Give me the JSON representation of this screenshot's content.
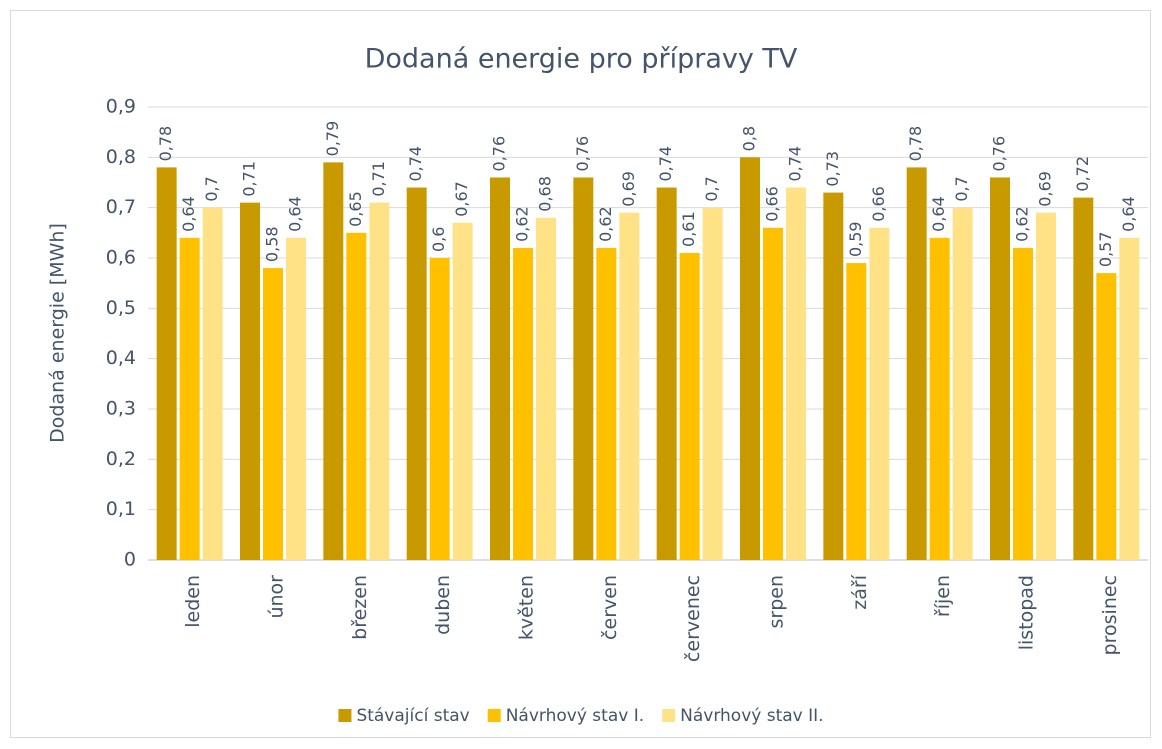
{
  "chart_data": {
    "type": "bar",
    "title": "Dodaná energie pro přípravy TV",
    "y_label": "Dodaná energie [MWh]",
    "categories": [
      "leden",
      "únor",
      "březen",
      "duben",
      "květen",
      "červen",
      "červenec",
      "srpen",
      "září",
      "říjen",
      "listopad",
      "prosinec"
    ],
    "series": [
      {
        "name": "Stávající stav",
        "color": "#c99a00",
        "values": [
          0.78,
          0.71,
          0.79,
          0.74,
          0.76,
          0.76,
          0.74,
          0.8,
          0.73,
          0.78,
          0.76,
          0.72
        ],
        "value_labels": [
          "0,78",
          "0,71",
          "0,79",
          "0,74",
          "0,76",
          "0,76",
          "0,74",
          "0,8",
          "0,73",
          "0,78",
          "0,76",
          "0,72"
        ]
      },
      {
        "name": "Návrhový stav I.",
        "color": "#ffc000",
        "values": [
          0.64,
          0.58,
          0.65,
          0.6,
          0.62,
          0.62,
          0.61,
          0.66,
          0.59,
          0.64,
          0.62,
          0.57
        ],
        "value_labels": [
          "0,64",
          "0,58",
          "0,65",
          "0,6",
          "0,62",
          "0,62",
          "0,61",
          "0,66",
          "0,59",
          "0,64",
          "0,62",
          "0,57"
        ]
      },
      {
        "name": "Návrhový stav II.",
        "color": "#ffe285",
        "values": [
          0.7,
          0.64,
          0.71,
          0.67,
          0.68,
          0.69,
          0.7,
          0.74,
          0.66,
          0.7,
          0.69,
          0.64
        ],
        "value_labels": [
          "0,7",
          "0,64",
          "0,71",
          "0,67",
          "0,68",
          "0,69",
          "0,7",
          "0,74",
          "0,66",
          "0,7",
          "0,69",
          "0,64"
        ]
      }
    ],
    "ylim": [
      0,
      0.9
    ],
    "yticks": [
      0,
      {
        "value": 0.1,
        "label": "0,1"
      },
      {
        "value": 0.2,
        "label": "0,2"
      },
      {
        "value": 0.3,
        "label": "0,3"
      },
      {
        "value": 0.4,
        "label": "0,4"
      },
      {
        "value": 0.5,
        "label": "0,5"
      },
      {
        "value": 0.6,
        "label": "0,6"
      },
      {
        "value": 0.7,
        "label": "0,7"
      },
      {
        "value": 0.8,
        "label": "0,8"
      },
      {
        "value": 0.9,
        "label": "0,9"
      }
    ],
    "grid": true,
    "legend": "bottom"
  }
}
